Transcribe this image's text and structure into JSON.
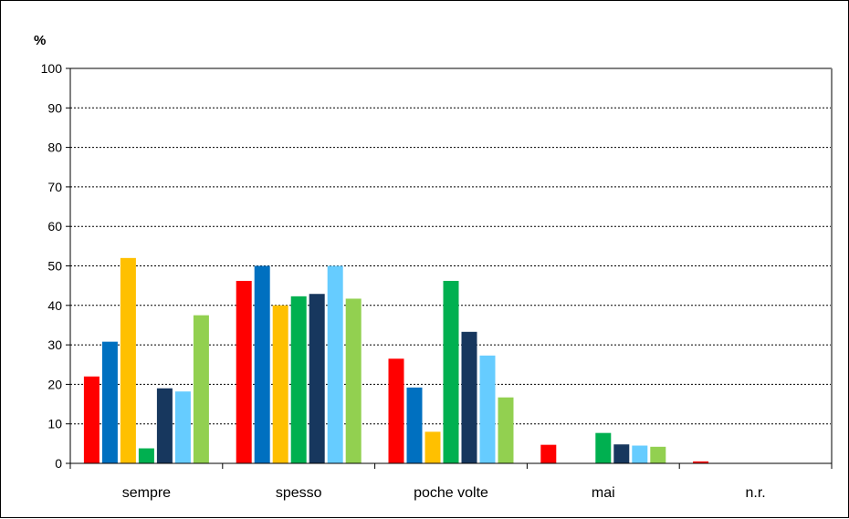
{
  "chart_data": {
    "type": "bar",
    "title": "",
    "unit_label": "%",
    "xlabel": "",
    "ylabel": "",
    "ylim": [
      0,
      100
    ],
    "y_ticks": [
      0,
      10,
      20,
      30,
      40,
      50,
      60,
      70,
      80,
      90,
      100
    ],
    "grid": true,
    "legend": "none",
    "categories": [
      "sempre",
      "spesso",
      "poche volte",
      "mai",
      "n.r."
    ],
    "series": [
      {
        "color": "#ff0000",
        "values": [
          22,
          46.2,
          26.5,
          4.7,
          0.5
        ]
      },
      {
        "color": "#0070c0",
        "values": [
          30.8,
          50,
          19.2,
          0,
          0
        ]
      },
      {
        "color": "#ffc000",
        "values": [
          52,
          40,
          8,
          0,
          0
        ]
      },
      {
        "color": "#00b050",
        "values": [
          3.8,
          42.3,
          46.2,
          7.7,
          0
        ]
      },
      {
        "color": "#17375e",
        "values": [
          19,
          42.9,
          33.3,
          4.8,
          0
        ]
      },
      {
        "color": "#66ccff",
        "values": [
          18.2,
          50,
          27.3,
          4.5,
          0
        ]
      },
      {
        "color": "#92d050",
        "values": [
          37.5,
          41.7,
          16.7,
          4.2,
          0
        ]
      }
    ]
  }
}
